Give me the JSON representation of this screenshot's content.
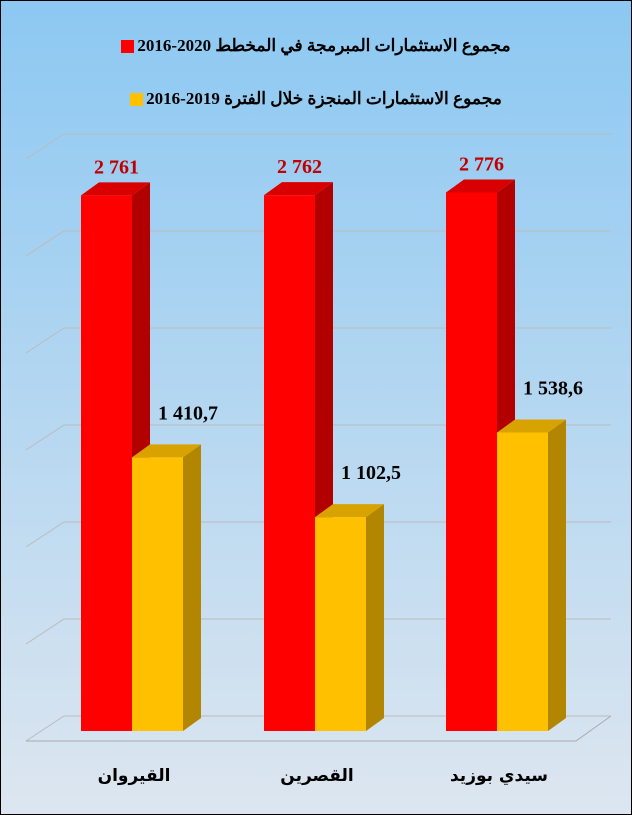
{
  "chart_data": {
    "type": "bar3d",
    "categories": [
      "القيروان",
      "القصرين",
      "سيدي بوزيد"
    ],
    "series": [
      {
        "name": "مجموع الاستثمارات المبرمجة في المخطط 2020-2016",
        "color": "#ff0000",
        "values": [
          2761,
          2762,
          2776
        ],
        "value_labels": [
          "2 761",
          "2 762",
          "2 776"
        ]
      },
      {
        "name": "مجموع الاستثمارات المنجزة خلال الفترة 2019-2016",
        "color": "#ffc000",
        "values": [
          1410.7,
          1102.5,
          1538.6
        ],
        "value_labels": [
          "1 410,7",
          "1 102,5",
          "1 538,6"
        ]
      }
    ],
    "ylim": [
      0,
      3000
    ],
    "yticks": [
      0,
      500,
      1000,
      1500,
      2000,
      2500,
      3000
    ],
    "grid": true
  }
}
